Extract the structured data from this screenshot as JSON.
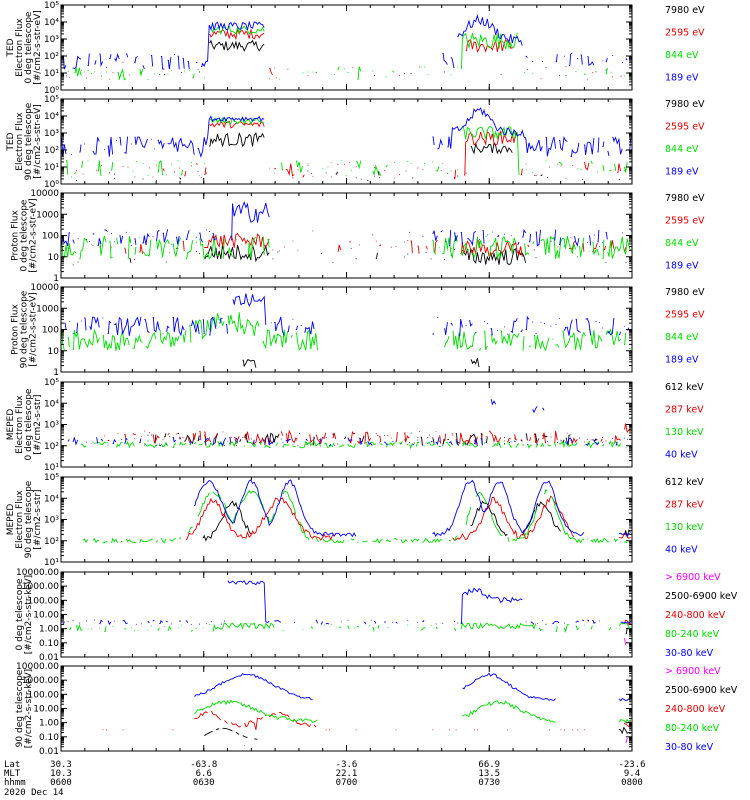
{
  "chart_data": {
    "type": "line",
    "date_label": "2020 Dec 14",
    "xaxis_rows": [
      {
        "label": "Lat",
        "values": [
          "30.3",
          "-63.8",
          "-3.6",
          "66.9",
          "-23.6"
        ]
      },
      {
        "label": "MLT",
        "values": [
          "10.3",
          "6.6",
          "22.1",
          "13.5",
          "9.4"
        ]
      },
      {
        "label": "hhmm",
        "values": [
          "0600",
          "0630",
          "0700",
          "0730",
          "0800"
        ]
      }
    ],
    "xticks_minutes": [
      0,
      30,
      60,
      90,
      120
    ],
    "colors": {
      "black": "#000000",
      "red": "#e00000",
      "green": "#00dd00",
      "blue": "#0000ee",
      "magenta": "#ff00ff"
    },
    "panels": [
      {
        "ylabel_lines": [
          "TED",
          "Electron Flux",
          "0 deg telescope",
          "[#/cm2-s-str-eV]"
        ],
        "yscale": "log",
        "ylim": [
          1,
          100000
        ],
        "yticks": [
          "10⁰",
          "10¹",
          "10²",
          "10³",
          "10⁴",
          "10⁵"
        ],
        "legend": [
          {
            "text": "7980 eV",
            "color": "#000000"
          },
          {
            "text": "2595 eV",
            "color": "#e00000"
          },
          {
            "text": "844 eV",
            "color": "#00dd00"
          },
          {
            "text": "189 eV",
            "color": "#0000ee"
          }
        ]
      },
      {
        "ylabel_lines": [
          "TED",
          "Electron Flux",
          "90 deg telescope",
          "[#/cm2-s-str-eV]"
        ],
        "yscale": "log",
        "ylim": [
          1,
          100000
        ],
        "yticks": [
          "10⁰",
          "10¹",
          "10²",
          "10³",
          "10⁴",
          "10⁵"
        ],
        "legend": [
          {
            "text": "7980 eV",
            "color": "#000000"
          },
          {
            "text": "2595 eV",
            "color": "#e00000"
          },
          {
            "text": "844 eV",
            "color": "#00dd00"
          },
          {
            "text": "189 eV",
            "color": "#0000ee"
          }
        ]
      },
      {
        "ylabel_lines": [
          "Proton Flux",
          "0 deg telescope",
          "[#/cm2-s-str-eV]"
        ],
        "yscale": "log",
        "ylim": [
          1,
          10000
        ],
        "yticks": [
          "1",
          "10",
          "100",
          "1000",
          "10000"
        ],
        "legend": [
          {
            "text": "7980 eV",
            "color": "#000000"
          },
          {
            "text": "2595 eV",
            "color": "#e00000"
          },
          {
            "text": "844 eV",
            "color": "#00dd00"
          },
          {
            "text": "189 eV",
            "color": "#0000ee"
          }
        ]
      },
      {
        "ylabel_lines": [
          "Proton Flux",
          "90 deg telescope",
          "[#/cm2-s-str-eV]"
        ],
        "yscale": "log",
        "ylim": [
          1,
          10000
        ],
        "yticks": [
          "1",
          "10",
          "100",
          "1000",
          "10000"
        ],
        "legend": [
          {
            "text": "7980 eV",
            "color": "#000000"
          },
          {
            "text": "2595 eV",
            "color": "#e00000"
          },
          {
            "text": "844 eV",
            "color": "#00dd00"
          },
          {
            "text": "189 eV",
            "color": "#0000ee"
          }
        ]
      },
      {
        "ylabel_lines": [
          "MEPED",
          "Electron Flux",
          "0 deg telescope",
          "[#/cm2-s-str]"
        ],
        "yscale": "log",
        "ylim": [
          10,
          100000
        ],
        "yticks": [
          "10¹",
          "10²",
          "10³",
          "10⁴",
          "10⁵"
        ],
        "legend": [
          {
            "text": "612 keV",
            "color": "#000000"
          },
          {
            "text": "287 keV",
            "color": "#e00000"
          },
          {
            "text": "130 keV",
            "color": "#00dd00"
          },
          {
            "text": "40 keV",
            "color": "#0000ee"
          }
        ]
      },
      {
        "ylabel_lines": [
          "MEPED",
          "Electron Flux",
          "90 deg telescope",
          "[#/cm2-s-str]"
        ],
        "yscale": "log",
        "ylim": [
          10,
          100000
        ],
        "yticks": [
          "10¹",
          "10²",
          "10³",
          "10⁴",
          "10⁵"
        ],
        "legend": [
          {
            "text": "612 keV",
            "color": "#000000"
          },
          {
            "text": "287 keV",
            "color": "#e00000"
          },
          {
            "text": "130 keV",
            "color": "#00dd00"
          },
          {
            "text": "40 keV",
            "color": "#0000ee"
          }
        ]
      },
      {
        "ylabel_lines": [
          "0 deg telescope",
          "[#/cm2-s-str-keV]"
        ],
        "yscale": "log",
        "ylim": [
          0.01,
          10000
        ],
        "yticks": [
          "0.01",
          "0.10",
          "1.00",
          "10.00",
          "100.00",
          "1000.00",
          "10000.00"
        ],
        "legend": [
          {
            "text": "> 6900 keV",
            "color": "#ff00ff"
          },
          {
            "text": "2500-6900 keV",
            "color": "#000000"
          },
          {
            "text": "240-800 keV",
            "color": "#e00000"
          },
          {
            "text": "80-240 keV",
            "color": "#00dd00"
          },
          {
            "text": "30-80 keV",
            "color": "#0000ee"
          }
        ]
      },
      {
        "ylabel_lines": [
          "90 deg telescope",
          "[#/cm2-s-str-keV]"
        ],
        "yscale": "log",
        "ylim": [
          0.01,
          10000
        ],
        "yticks": [
          "0.01",
          "0.10",
          "1.00",
          "10.00",
          "100.00",
          "1000.00",
          "10000.00"
        ],
        "legend": [
          {
            "text": "> 6900 keV",
            "color": "#ff00ff"
          },
          {
            "text": "2500-6900 keV",
            "color": "#000000"
          },
          {
            "text": "240-800 keV",
            "color": "#e00000"
          },
          {
            "text": "80-240 keV",
            "color": "#00dd00"
          },
          {
            "text": "30-80 keV",
            "color": "#0000ee"
          }
        ]
      }
    ]
  }
}
